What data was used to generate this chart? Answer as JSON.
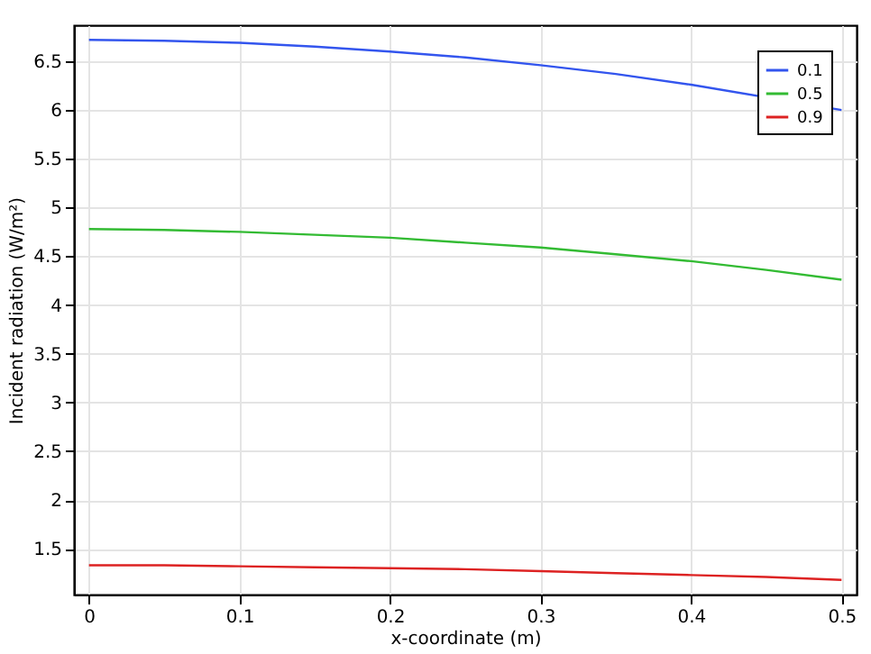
{
  "chart_data": {
    "type": "line",
    "xlabel": "x-coordinate (m)",
    "ylabel": "Incident radiation (W/m²)",
    "x": [
      0,
      0.05,
      0.1,
      0.15,
      0.2,
      0.25,
      0.3,
      0.35,
      0.4,
      0.45,
      0.5
    ],
    "series": [
      {
        "name": "0.1",
        "color": "#3355ee",
        "values": [
          6.72,
          6.71,
          6.69,
          6.65,
          6.6,
          6.54,
          6.46,
          6.37,
          6.26,
          null,
          6.0
        ]
      },
      {
        "name": "0.5",
        "color": "#33bb33",
        "values": [
          4.78,
          4.77,
          4.75,
          4.72,
          4.69,
          4.64,
          4.59,
          4.52,
          4.45,
          4.36,
          4.26
        ]
      },
      {
        "name": "0.9",
        "color": "#dd2222",
        "values": [
          1.33,
          1.33,
          1.32,
          1.31,
          1.3,
          1.29,
          1.27,
          1.25,
          1.23,
          1.21,
          1.18
        ]
      }
    ],
    "xlim": [
      -0.01,
      0.51
    ],
    "xticks": [
      0,
      0.1,
      0.2,
      0.3,
      0.4,
      0.5
    ],
    "ylim": [
      1.03,
      6.87
    ],
    "yticks": [
      1.5,
      2,
      2.5,
      3,
      3.5,
      4,
      4.5,
      5,
      5.5,
      6,
      6.5
    ],
    "grid": true,
    "legend": "top right",
    "line_style": "solid",
    "marker": "none"
  }
}
